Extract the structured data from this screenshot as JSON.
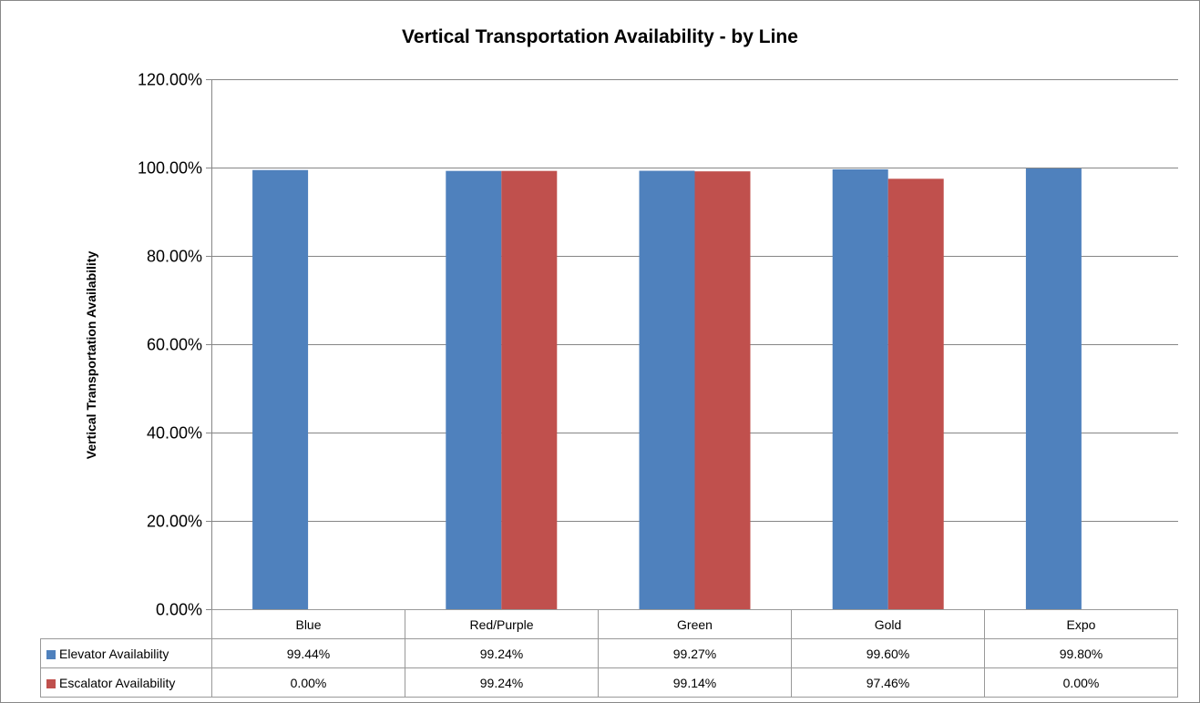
{
  "chart_data": {
    "type": "bar",
    "title": "Vertical Transportation Availability - by Line",
    "xlabel": "",
    "ylabel": "Vertical Transportation Availability",
    "ylim": [
      0,
      120
    ],
    "yticks": [
      "0.00%",
      "20.00%",
      "40.00%",
      "60.00%",
      "80.00%",
      "100.00%",
      "120.00%"
    ],
    "categories": [
      "Blue",
      "Red/Purple",
      "Green",
      "Gold",
      "Expo"
    ],
    "series": [
      {
        "name": "Elevator Availability",
        "color": "#4F81BD",
        "values": [
          99.44,
          99.24,
          99.27,
          99.6,
          99.8
        ],
        "labels": [
          "99.44%",
          "99.24%",
          "99.27%",
          "99.60%",
          "99.80%"
        ]
      },
      {
        "name": "Escalator Availability",
        "color": "#C0504D",
        "values": [
          0.0,
          99.24,
          99.14,
          97.46,
          0.0
        ],
        "labels": [
          "0.00%",
          "99.24%",
          "99.14%",
          "97.46%",
          "0.00%"
        ]
      }
    ],
    "grid": true,
    "legend": "data table"
  }
}
